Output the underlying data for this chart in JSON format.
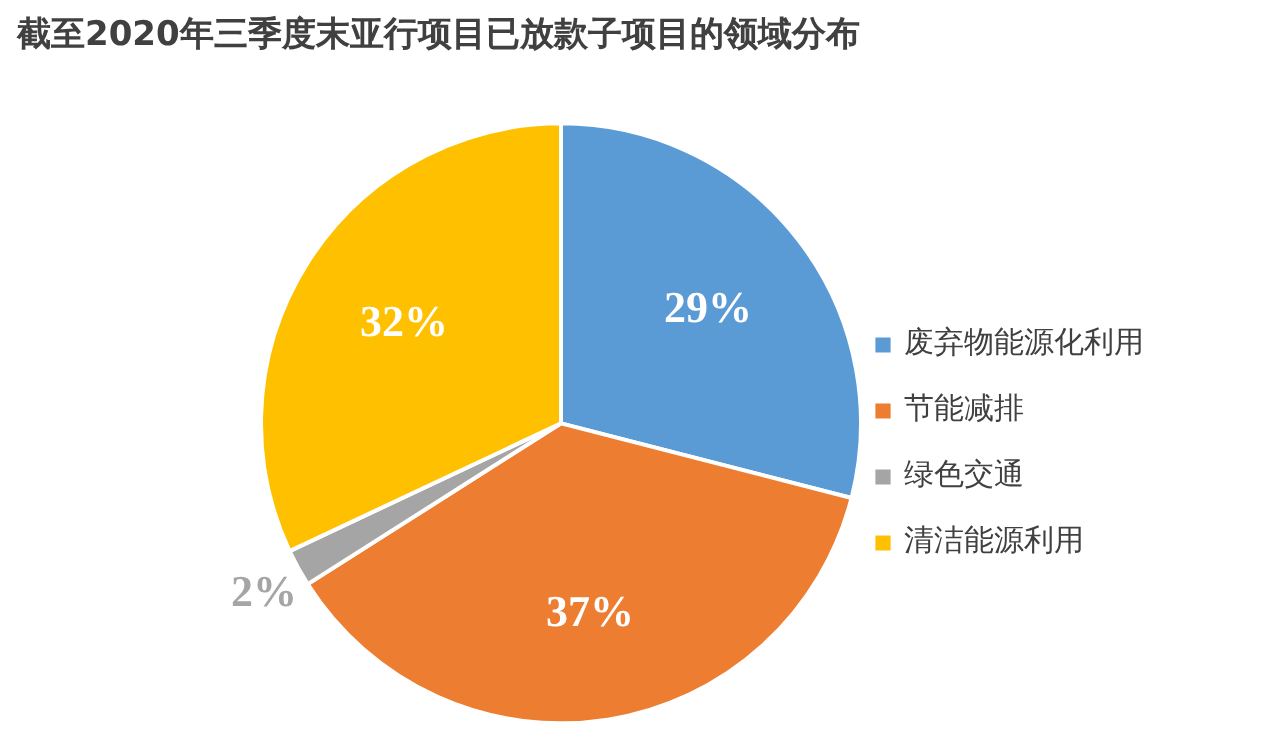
{
  "chart_data": {
    "type": "pie",
    "title": "截至2020年三季度末亚行项目已放款子项目的领域分布",
    "categories": [
      "废弃物能源化利用",
      "节能减排",
      "绿色交通",
      "清洁能源利用"
    ],
    "values": [
      29,
      37,
      2,
      32
    ],
    "colors": [
      "#5b9bd5",
      "#ed7d31",
      "#a5a5a5",
      "#ffc000"
    ],
    "value_labels": [
      "29%",
      "37%",
      "2%",
      "32%"
    ],
    "legend": "right"
  }
}
